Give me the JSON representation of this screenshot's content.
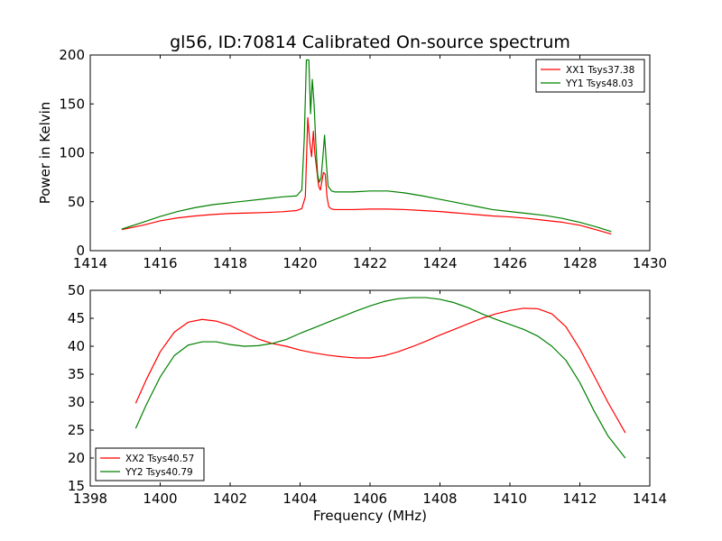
{
  "figure": {
    "title": "gl56, ID:70814 Calibrated On-source spectrum"
  },
  "chart_data": [
    {
      "type": "line",
      "title": "gl56, ID:70814 Calibrated On-source spectrum",
      "xlabel": "",
      "ylabel": "Power in Kelvin",
      "xlim": [
        1414,
        1430
      ],
      "ylim": [
        0,
        200
      ],
      "xticks": [
        "1414",
        "1416",
        "1418",
        "1420",
        "1422",
        "1424",
        "1426",
        "1428",
        "1430"
      ],
      "yticks": [
        "0",
        "50",
        "100",
        "150",
        "200"
      ],
      "grid": false,
      "legend_position": "top-right",
      "series": [
        {
          "name": "XX1 Tsys37.38",
          "color": "#ff0000",
          "x": [
            1414.9,
            1415.5,
            1416.0,
            1416.5,
            1417.0,
            1417.5,
            1418.0,
            1418.5,
            1419.0,
            1419.5,
            1419.9,
            1420.05,
            1420.15,
            1420.22,
            1420.28,
            1420.33,
            1420.38,
            1420.42,
            1420.47,
            1420.53,
            1420.58,
            1420.63,
            1420.67,
            1420.72,
            1420.77,
            1420.82,
            1420.9,
            1421.0,
            1421.5,
            1422.0,
            1422.5,
            1423.0,
            1423.5,
            1424.0,
            1424.5,
            1425.0,
            1425.5,
            1426.0,
            1426.5,
            1427.0,
            1427.5,
            1428.0,
            1428.5,
            1428.9
          ],
          "y": [
            21.5,
            26,
            30.5,
            33.5,
            35.5,
            37,
            38,
            38.5,
            39,
            39.8,
            41,
            43,
            55,
            136,
            110,
            96,
            122,
            100,
            85,
            66,
            62,
            72,
            80,
            78,
            55,
            45,
            42.5,
            42,
            42,
            42.5,
            42.5,
            42,
            41,
            40,
            38.5,
            37,
            35.5,
            34.5,
            33,
            31,
            29,
            26,
            21,
            17
          ]
        },
        {
          "name": "YY1 Tsys48.03",
          "color": "#008000",
          "x": [
            1414.9,
            1415.5,
            1416.0,
            1416.5,
            1417.0,
            1417.5,
            1418.0,
            1418.5,
            1419.0,
            1419.5,
            1419.9,
            1420.05,
            1420.12,
            1420.18,
            1420.25,
            1420.3,
            1420.35,
            1420.4,
            1420.45,
            1420.5,
            1420.55,
            1420.6,
            1420.65,
            1420.7,
            1420.75,
            1420.8,
            1420.9,
            1421.0,
            1421.5,
            1422.0,
            1422.5,
            1423.0,
            1423.5,
            1424.0,
            1424.5,
            1425.0,
            1425.5,
            1426.0,
            1426.5,
            1427.0,
            1427.5,
            1428.0,
            1428.5,
            1428.9
          ],
          "y": [
            22,
            29,
            35,
            40,
            44,
            47,
            49,
            51,
            53,
            55,
            56,
            62,
            115,
            195,
            195,
            140,
            175,
            150,
            110,
            78,
            70,
            74,
            95,
            118,
            90,
            66,
            61,
            60,
            60,
            61,
            61,
            59,
            56,
            52.5,
            49,
            45.5,
            42,
            40,
            38,
            36,
            33,
            29,
            24,
            19.5
          ]
        }
      ]
    },
    {
      "type": "line",
      "title": "",
      "xlabel": "Frequency (MHz)",
      "ylabel": "",
      "xlim": [
        1398,
        1414
      ],
      "ylim": [
        15,
        50
      ],
      "xticks": [
        "1398",
        "1400",
        "1402",
        "1404",
        "1406",
        "1408",
        "1410",
        "1412",
        "1414"
      ],
      "yticks": [
        "15",
        "20",
        "25",
        "30",
        "35",
        "40",
        "45",
        "50"
      ],
      "grid": false,
      "legend_position": "bottom-left",
      "series": [
        {
          "name": "XX2 Tsys40.57",
          "color": "#ff0000",
          "x": [
            1399.3,
            1399.6,
            1400.0,
            1400.4,
            1400.8,
            1401.2,
            1401.6,
            1402.0,
            1402.4,
            1402.8,
            1403.2,
            1403.6,
            1404.0,
            1404.4,
            1404.8,
            1405.2,
            1405.6,
            1406.0,
            1406.4,
            1406.8,
            1407.2,
            1407.6,
            1408.0,
            1408.4,
            1408.8,
            1409.2,
            1409.6,
            1410.0,
            1410.4,
            1410.8,
            1411.2,
            1411.6,
            1412.0,
            1412.4,
            1412.8,
            1413.3
          ],
          "y": [
            29.8,
            34,
            39,
            42.5,
            44.3,
            44.8,
            44.5,
            43.7,
            42.5,
            41.3,
            40.5,
            40,
            39.3,
            38.8,
            38.4,
            38.1,
            37.9,
            37.9,
            38.3,
            39,
            39.9,
            40.9,
            42,
            43,
            44,
            45,
            45.8,
            46.4,
            46.8,
            46.7,
            45.8,
            43.5,
            39.5,
            34.8,
            30,
            24.5
          ]
        },
        {
          "name": "YY2 Tsys40.79",
          "color": "#008000",
          "x": [
            1399.3,
            1399.6,
            1400.0,
            1400.4,
            1400.8,
            1401.2,
            1401.6,
            1402.0,
            1402.4,
            1402.8,
            1403.2,
            1403.6,
            1404.0,
            1404.4,
            1404.8,
            1405.2,
            1405.6,
            1406.0,
            1406.4,
            1406.8,
            1407.2,
            1407.6,
            1408.0,
            1408.4,
            1408.8,
            1409.2,
            1409.6,
            1410.0,
            1410.4,
            1410.8,
            1411.2,
            1411.6,
            1412.0,
            1412.4,
            1412.8,
            1413.3
          ],
          "y": [
            25.3,
            29.5,
            34.5,
            38.3,
            40.2,
            40.8,
            40.8,
            40.3,
            40,
            40.1,
            40.5,
            41.2,
            42.3,
            43.3,
            44.3,
            45.3,
            46.3,
            47.2,
            48,
            48.5,
            48.7,
            48.7,
            48.4,
            47.8,
            46.9,
            45.8,
            44.8,
            43.9,
            43,
            41.8,
            40,
            37.5,
            33.5,
            28.5,
            24,
            20
          ]
        }
      ]
    }
  ]
}
